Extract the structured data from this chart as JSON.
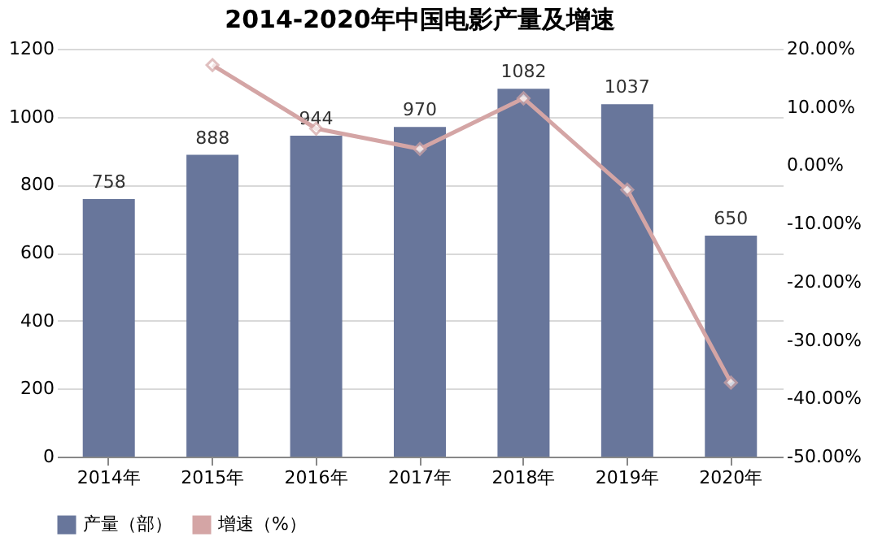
{
  "chart_data": {
    "type": "bar",
    "title": "2014-2020年中国电影产量及增速",
    "categories": [
      "2014年",
      "2015年",
      "2016年",
      "2017年",
      "2018年",
      "2019年",
      "2020年"
    ],
    "series": [
      {
        "name": "产量（部）",
        "color": "#68769b",
        "values": [
          758,
          888,
          944,
          970,
          1082,
          1037,
          650
        ],
        "value_labels": [
          "758",
          "888",
          "944",
          "970",
          "1082",
          "1037",
          "650"
        ]
      },
      {
        "name": "增速（%）",
        "type": "line",
        "axis": "y2",
        "color": "#d4a5a5",
        "marker": "diamond",
        "values": [
          null,
          17.2,
          6.3,
          2.8,
          11.5,
          -4.2,
          -37.3
        ]
      }
    ],
    "ylim": [
      0,
      1200
    ],
    "yticks": [
      0,
      200,
      400,
      600,
      800,
      1000,
      1200
    ],
    "y2lim": [
      -50,
      20
    ],
    "y2ticks": [
      {
        "value": 20,
        "label": "20.00%"
      },
      {
        "value": 10,
        "label": "10.00%"
      },
      {
        "value": 0,
        "label": "0.00%"
      },
      {
        "value": -10,
        "label": "-10.00%"
      },
      {
        "value": -20,
        "label": "-20.00%"
      },
      {
        "value": -30,
        "label": "-30.00%"
      },
      {
        "value": -40,
        "label": "-40.00%"
      },
      {
        "value": -50,
        "label": "-50.00%"
      }
    ],
    "grid": "y",
    "legend": "bottom"
  }
}
